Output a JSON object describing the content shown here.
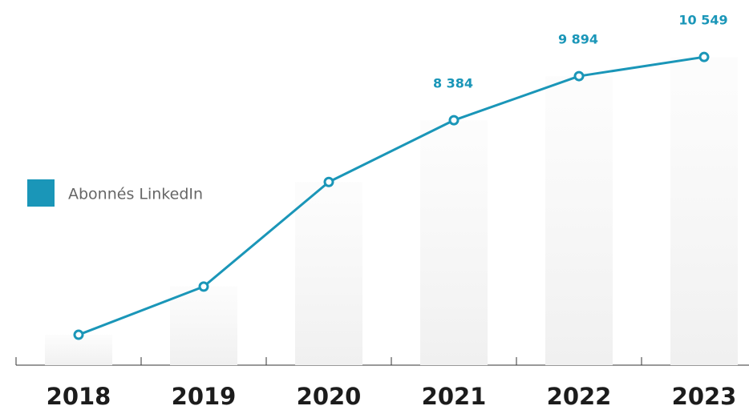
{
  "chart_data": {
    "type": "line",
    "categories": [
      "2018",
      "2019",
      "2020",
      "2021",
      "2022",
      "2023"
    ],
    "series": [
      {
        "name": "Abonnés LinkedIn",
        "color": "#1a96b8",
        "values": [
          1040,
          2690,
          6270,
          8384,
          9894,
          10549
        ],
        "value_labels": [
          null,
          null,
          null,
          "8 384",
          "9 894",
          "10 549"
        ]
      }
    ],
    "ylim": [
      0,
      12500
    ],
    "legend": "left"
  }
}
